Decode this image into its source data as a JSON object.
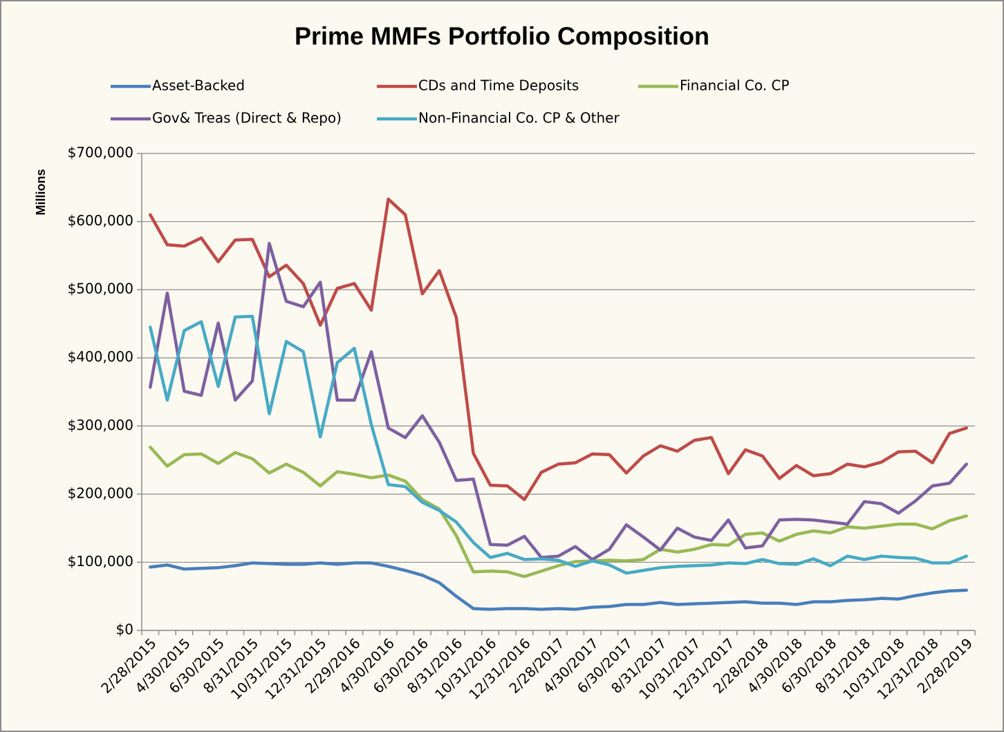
{
  "chart_data": {
    "type": "line",
    "title": "Prime MMFs Portfolio Composition",
    "y_label": "Millions",
    "categories": [
      "2/28/2015",
      null,
      "4/30/2015",
      null,
      "6/30/2015",
      null,
      "8/31/2015",
      null,
      "10/31/2015",
      null,
      "12/31/2015",
      null,
      "2/29/2016",
      null,
      "4/30/2016",
      null,
      "6/30/2016",
      null,
      "8/31/2016",
      null,
      "10/31/2016",
      null,
      "12/31/2016",
      null,
      "2/28/2017",
      null,
      "4/30/2017",
      null,
      "6/30/2017",
      null,
      "8/31/2017",
      null,
      "10/31/2017",
      null,
      "12/31/2017",
      null,
      "2/28/2018",
      null,
      "4/30/2018",
      null,
      "6/30/2018",
      null,
      "8/31/2018",
      null,
      "10/31/2018",
      null,
      "12/31/2018",
      null,
      "2/28/2019"
    ],
    "series": [
      {
        "name": "Asset-Backed",
        "color": "#4a7ebb",
        "values": [
          93000,
          96000,
          90000,
          91000,
          92000,
          95000,
          99000,
          98000,
          97000,
          97000,
          99000,
          97000,
          99000,
          99000,
          94000,
          88000,
          81000,
          70000,
          50000,
          32000,
          31000,
          32000,
          32000,
          31000,
          32000,
          31000,
          34000,
          35000,
          38000,
          38000,
          41000,
          38000,
          39000,
          40000,
          41000,
          42000,
          40000,
          40000,
          38000,
          42000,
          42000,
          44000,
          45000,
          47000,
          46000,
          51000,
          55000,
          58000,
          59000
        ]
      },
      {
        "name": "CDs and Time Deposits",
        "color": "#be4b48",
        "values": [
          610000,
          566000,
          564000,
          576000,
          541000,
          573000,
          574000,
          519000,
          536000,
          509000,
          448000,
          502000,
          509000,
          470000,
          633000,
          610000,
          494000,
          528000,
          459000,
          260000,
          213000,
          212000,
          192000,
          232000,
          244000,
          246000,
          259000,
          258000,
          231000,
          256000,
          271000,
          263000,
          279000,
          283000,
          230000,
          265000,
          256000,
          223000,
          242000,
          227000,
          230000,
          244000,
          240000,
          247000,
          262000,
          263000,
          246000,
          289000,
          297000
        ]
      },
      {
        "name": "Financial Co. CP",
        "color": "#98b954",
        "values": [
          269000,
          241000,
          258000,
          259000,
          245000,
          261000,
          252000,
          231000,
          244000,
          232000,
          212000,
          233000,
          229000,
          224000,
          228000,
          219000,
          192000,
          178000,
          139000,
          86000,
          87000,
          86000,
          79000,
          87000,
          95000,
          101000,
          102000,
          103000,
          102000,
          104000,
          119000,
          115000,
          119000,
          126000,
          125000,
          141000,
          143000,
          131000,
          141000,
          146000,
          143000,
          152000,
          150000,
          153000,
          156000,
          156000,
          149000,
          161000,
          168000
        ]
      },
      {
        "name": "Gov& Treas (Direct & Repo)",
        "color": "#7d60a0",
        "values": [
          357000,
          495000,
          351000,
          345000,
          451000,
          338000,
          366000,
          568000,
          483000,
          475000,
          511000,
          338000,
          338000,
          409000,
          297000,
          283000,
          315000,
          276000,
          220000,
          222000,
          126000,
          125000,
          138000,
          107000,
          109000,
          123000,
          104000,
          119000,
          155000,
          137000,
          118000,
          150000,
          137000,
          132000,
          162000,
          121000,
          124000,
          162000,
          163000,
          162000,
          159000,
          156000,
          189000,
          186000,
          172000,
          190000,
          212000,
          216000,
          244000
        ]
      },
      {
        "name": "Non-Financial Co. CP & Other",
        "color": "#46aac5",
        "values": [
          445000,
          338000,
          440000,
          453000,
          358000,
          460000,
          461000,
          318000,
          424000,
          409000,
          284000,
          393000,
          414000,
          302000,
          214000,
          211000,
          188000,
          176000,
          159000,
          129000,
          107000,
          113000,
          104000,
          105000,
          103000,
          94000,
          102000,
          96000,
          84000,
          88000,
          92000,
          94000,
          95000,
          96000,
          99000,
          98000,
          104000,
          98000,
          97000,
          105000,
          95000,
          109000,
          104000,
          109000,
          107000,
          106000,
          99000,
          99000,
          109000
        ]
      }
    ],
    "ylim": [
      0,
      700000
    ],
    "yticks": [
      {
        "value": 0,
        "label": "$0"
      },
      {
        "value": 100000,
        "label": "$100,000"
      },
      {
        "value": 200000,
        "label": "$200,000"
      },
      {
        "value": 300000,
        "label": "$300,000"
      },
      {
        "value": 400000,
        "label": "$400,000"
      },
      {
        "value": 500000,
        "label": "$500,000"
      },
      {
        "value": 600000,
        "label": "$600,000"
      },
      {
        "value": 700000,
        "label": "$700,000"
      }
    ],
    "grid": true,
    "legend": "top"
  }
}
